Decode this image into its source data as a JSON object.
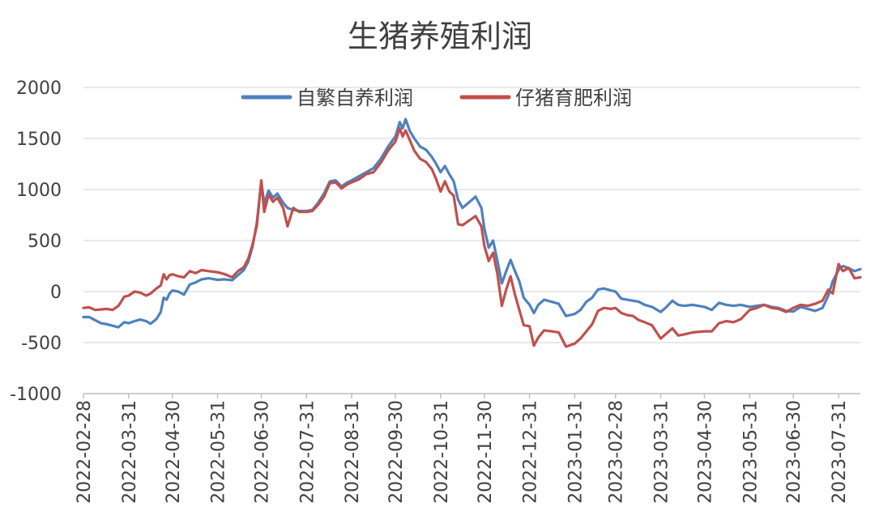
{
  "chart_data": {
    "type": "line",
    "title": "生猪养殖利润",
    "xlabel": "",
    "ylabel": "",
    "ylim": [
      -1000,
      2000
    ],
    "yticks": [
      "2000",
      "1500",
      "1000",
      "500",
      "0",
      "-500",
      "-1000"
    ],
    "ytick_values": [
      2000,
      1500,
      1000,
      500,
      0,
      -500,
      -1000
    ],
    "xlim": [
      "2022-02-28",
      "2023-08-15"
    ],
    "xticks": [
      "2022-02-28",
      "2022-03-31",
      "2022-04-30",
      "2022-05-31",
      "2022-06-30",
      "2022-07-31",
      "2022-08-31",
      "2022-09-30",
      "2022-10-31",
      "2022-11-30",
      "2022-12-31",
      "2023-01-31",
      "2023-02-28",
      "2023-03-31",
      "2023-04-30",
      "2023-05-31",
      "2023-06-30",
      "2023-07-31"
    ],
    "grid": true,
    "legend_position": "top-center",
    "series": [
      {
        "name": "自繁自养利润",
        "color": "#4f81bd",
        "points": [
          [
            "2022-02-28",
            -250
          ],
          [
            "2022-03-04",
            -250
          ],
          [
            "2022-03-08",
            -280
          ],
          [
            "2022-03-12",
            -310
          ],
          [
            "2022-03-16",
            -320
          ],
          [
            "2022-03-20",
            -335
          ],
          [
            "2022-03-24",
            -350
          ],
          [
            "2022-03-28",
            -300
          ],
          [
            "2022-03-31",
            -310
          ],
          [
            "2022-04-04",
            -290
          ],
          [
            "2022-04-08",
            -275
          ],
          [
            "2022-04-12",
            -290
          ],
          [
            "2022-04-15",
            -315
          ],
          [
            "2022-04-19",
            -270
          ],
          [
            "2022-04-22",
            -200
          ],
          [
            "2022-04-24",
            -60
          ],
          [
            "2022-04-26",
            -80
          ],
          [
            "2022-04-28",
            -20
          ],
          [
            "2022-04-30",
            10
          ],
          [
            "2022-05-04",
            0
          ],
          [
            "2022-05-08",
            -30
          ],
          [
            "2022-05-12",
            70
          ],
          [
            "2022-05-16",
            90
          ],
          [
            "2022-05-20",
            120
          ],
          [
            "2022-05-25",
            130
          ],
          [
            "2022-05-31",
            115
          ],
          [
            "2022-06-05",
            120
          ],
          [
            "2022-06-10",
            110
          ],
          [
            "2022-06-14",
            160
          ],
          [
            "2022-06-18",
            210
          ],
          [
            "2022-06-21",
            290
          ],
          [
            "2022-06-24",
            440
          ],
          [
            "2022-06-27",
            680
          ],
          [
            "2022-06-30",
            1080
          ],
          [
            "2022-07-02",
            860
          ],
          [
            "2022-07-05",
            990
          ],
          [
            "2022-07-08",
            920
          ],
          [
            "2022-07-11",
            960
          ],
          [
            "2022-07-15",
            870
          ],
          [
            "2022-07-18",
            820
          ],
          [
            "2022-07-22",
            800
          ],
          [
            "2022-07-26",
            790
          ],
          [
            "2022-07-31",
            790
          ],
          [
            "2022-08-04",
            800
          ],
          [
            "2022-08-08",
            870
          ],
          [
            "2022-08-12",
            960
          ],
          [
            "2022-08-16",
            1080
          ],
          [
            "2022-08-20",
            1090
          ],
          [
            "2022-08-24",
            1030
          ],
          [
            "2022-08-28",
            1070
          ],
          [
            "2022-08-31",
            1090
          ],
          [
            "2022-09-05",
            1130
          ],
          [
            "2022-09-10",
            1170
          ],
          [
            "2022-09-15",
            1210
          ],
          [
            "2022-09-20",
            1300
          ],
          [
            "2022-09-25",
            1420
          ],
          [
            "2022-09-30",
            1520
          ],
          [
            "2022-10-03",
            1660
          ],
          [
            "2022-10-05",
            1600
          ],
          [
            "2022-10-07",
            1690
          ],
          [
            "2022-10-10",
            1570
          ],
          [
            "2022-10-13",
            1500
          ],
          [
            "2022-10-17",
            1420
          ],
          [
            "2022-10-21",
            1390
          ],
          [
            "2022-10-25",
            1320
          ],
          [
            "2022-10-28",
            1250
          ],
          [
            "2022-10-31",
            1170
          ],
          [
            "2022-11-03",
            1230
          ],
          [
            "2022-11-06",
            1150
          ],
          [
            "2022-11-09",
            1080
          ],
          [
            "2022-11-12",
            900
          ],
          [
            "2022-11-15",
            820
          ],
          [
            "2022-11-20",
            880
          ],
          [
            "2022-11-24",
            930
          ],
          [
            "2022-11-28",
            820
          ],
          [
            "2022-11-30",
            620
          ],
          [
            "2022-12-03",
            430
          ],
          [
            "2022-12-06",
            500
          ],
          [
            "2022-12-09",
            300
          ],
          [
            "2022-12-12",
            80
          ],
          [
            "2022-12-15",
            200
          ],
          [
            "2022-12-18",
            310
          ],
          [
            "2022-12-21",
            200
          ],
          [
            "2022-12-24",
            100
          ],
          [
            "2022-12-27",
            -60
          ],
          [
            "2022-12-31",
            -130
          ],
          [
            "2023-01-03",
            -210
          ],
          [
            "2023-01-06",
            -130
          ],
          [
            "2023-01-10",
            -80
          ],
          [
            "2023-01-15",
            -100
          ],
          [
            "2023-01-20",
            -120
          ],
          [
            "2023-01-25",
            -240
          ],
          [
            "2023-01-31",
            -220
          ],
          [
            "2023-02-04",
            -180
          ],
          [
            "2023-02-08",
            -100
          ],
          [
            "2023-02-12",
            -60
          ],
          [
            "2023-02-16",
            20
          ],
          [
            "2023-02-20",
            30
          ],
          [
            "2023-02-25",
            10
          ],
          [
            "2023-02-28",
            0
          ],
          [
            "2023-03-04",
            -70
          ],
          [
            "2023-03-08",
            -80
          ],
          [
            "2023-03-12",
            -90
          ],
          [
            "2023-03-16",
            -100
          ],
          [
            "2023-03-20",
            -130
          ],
          [
            "2023-03-25",
            -150
          ],
          [
            "2023-03-31",
            -200
          ],
          [
            "2023-04-04",
            -150
          ],
          [
            "2023-04-08",
            -90
          ],
          [
            "2023-04-12",
            -130
          ],
          [
            "2023-04-16",
            -140
          ],
          [
            "2023-04-22",
            -130
          ],
          [
            "2023-04-30",
            -150
          ],
          [
            "2023-05-05",
            -180
          ],
          [
            "2023-05-10",
            -110
          ],
          [
            "2023-05-15",
            -130
          ],
          [
            "2023-05-20",
            -140
          ],
          [
            "2023-05-25",
            -130
          ],
          [
            "2023-05-31",
            -150
          ],
          [
            "2023-06-05",
            -140
          ],
          [
            "2023-06-10",
            -130
          ],
          [
            "2023-06-15",
            -150
          ],
          [
            "2023-06-20",
            -160
          ],
          [
            "2023-06-25",
            -190
          ],
          [
            "2023-06-30",
            -195
          ],
          [
            "2023-07-05",
            -150
          ],
          [
            "2023-07-10",
            -170
          ],
          [
            "2023-07-15",
            -190
          ],
          [
            "2023-07-20",
            -160
          ],
          [
            "2023-07-24",
            -40
          ],
          [
            "2023-07-27",
            100
          ],
          [
            "2023-07-31",
            210
          ],
          [
            "2023-08-03",
            250
          ],
          [
            "2023-08-07",
            230
          ],
          [
            "2023-08-11",
            200
          ],
          [
            "2023-08-15",
            220
          ]
        ]
      },
      {
        "name": "仔猪育肥利润",
        "color": "#c0504d",
        "points": [
          [
            "2022-02-28",
            -160
          ],
          [
            "2022-03-04",
            -155
          ],
          [
            "2022-03-08",
            -180
          ],
          [
            "2022-03-12",
            -175
          ],
          [
            "2022-03-16",
            -170
          ],
          [
            "2022-03-20",
            -180
          ],
          [
            "2022-03-24",
            -140
          ],
          [
            "2022-03-28",
            -50
          ],
          [
            "2022-03-31",
            -40
          ],
          [
            "2022-04-04",
            0
          ],
          [
            "2022-04-08",
            -10
          ],
          [
            "2022-04-12",
            -40
          ],
          [
            "2022-04-15",
            -20
          ],
          [
            "2022-04-19",
            30
          ],
          [
            "2022-04-22",
            60
          ],
          [
            "2022-04-24",
            170
          ],
          [
            "2022-04-26",
            120
          ],
          [
            "2022-04-28",
            160
          ],
          [
            "2022-04-30",
            170
          ],
          [
            "2022-05-04",
            150
          ],
          [
            "2022-05-08",
            140
          ],
          [
            "2022-05-12",
            200
          ],
          [
            "2022-05-16",
            180
          ],
          [
            "2022-05-20",
            210
          ],
          [
            "2022-05-25",
            200
          ],
          [
            "2022-05-31",
            190
          ],
          [
            "2022-06-05",
            170
          ],
          [
            "2022-06-10",
            140
          ],
          [
            "2022-06-14",
            200
          ],
          [
            "2022-06-18",
            240
          ],
          [
            "2022-06-21",
            320
          ],
          [
            "2022-06-24",
            460
          ],
          [
            "2022-06-27",
            650
          ],
          [
            "2022-06-30",
            1090
          ],
          [
            "2022-07-02",
            780
          ],
          [
            "2022-07-05",
            950
          ],
          [
            "2022-07-08",
            880
          ],
          [
            "2022-07-11",
            920
          ],
          [
            "2022-07-15",
            820
          ],
          [
            "2022-07-18",
            640
          ],
          [
            "2022-07-22",
            820
          ],
          [
            "2022-07-26",
            780
          ],
          [
            "2022-07-31",
            780
          ],
          [
            "2022-08-04",
            790
          ],
          [
            "2022-08-08",
            850
          ],
          [
            "2022-08-12",
            930
          ],
          [
            "2022-08-16",
            1060
          ],
          [
            "2022-08-20",
            1070
          ],
          [
            "2022-08-24",
            1010
          ],
          [
            "2022-08-28",
            1050
          ],
          [
            "2022-08-31",
            1070
          ],
          [
            "2022-09-05",
            1100
          ],
          [
            "2022-09-10",
            1150
          ],
          [
            "2022-09-15",
            1170
          ],
          [
            "2022-09-20",
            1260
          ],
          [
            "2022-09-25",
            1380
          ],
          [
            "2022-09-30",
            1470
          ],
          [
            "2022-10-03",
            1600
          ],
          [
            "2022-10-05",
            1520
          ],
          [
            "2022-10-07",
            1580
          ],
          [
            "2022-10-10",
            1480
          ],
          [
            "2022-10-13",
            1380
          ],
          [
            "2022-10-17",
            1300
          ],
          [
            "2022-10-21",
            1270
          ],
          [
            "2022-10-25",
            1200
          ],
          [
            "2022-10-28",
            1100
          ],
          [
            "2022-10-31",
            980
          ],
          [
            "2022-11-03",
            1080
          ],
          [
            "2022-11-06",
            980
          ],
          [
            "2022-11-09",
            940
          ],
          [
            "2022-11-12",
            660
          ],
          [
            "2022-11-15",
            650
          ],
          [
            "2022-11-20",
            700
          ],
          [
            "2022-11-24",
            740
          ],
          [
            "2022-11-28",
            640
          ],
          [
            "2022-11-30",
            450
          ],
          [
            "2022-12-03",
            300
          ],
          [
            "2022-12-06",
            380
          ],
          [
            "2022-12-09",
            170
          ],
          [
            "2022-12-12",
            -140
          ],
          [
            "2022-12-15",
            20
          ],
          [
            "2022-12-18",
            150
          ],
          [
            "2022-12-21",
            -30
          ],
          [
            "2022-12-24",
            -180
          ],
          [
            "2022-12-27",
            -330
          ],
          [
            "2022-12-31",
            -340
          ],
          [
            "2023-01-03",
            -530
          ],
          [
            "2023-01-06",
            -450
          ],
          [
            "2023-01-10",
            -380
          ],
          [
            "2023-01-15",
            -390
          ],
          [
            "2023-01-20",
            -400
          ],
          [
            "2023-01-25",
            -540
          ],
          [
            "2023-01-31",
            -510
          ],
          [
            "2023-02-04",
            -460
          ],
          [
            "2023-02-08",
            -390
          ],
          [
            "2023-02-12",
            -320
          ],
          [
            "2023-02-16",
            -190
          ],
          [
            "2023-02-20",
            -160
          ],
          [
            "2023-02-25",
            -170
          ],
          [
            "2023-02-28",
            -160
          ],
          [
            "2023-03-04",
            -210
          ],
          [
            "2023-03-08",
            -230
          ],
          [
            "2023-03-12",
            -240
          ],
          [
            "2023-03-16",
            -280
          ],
          [
            "2023-03-20",
            -300
          ],
          [
            "2023-03-25",
            -330
          ],
          [
            "2023-03-31",
            -460
          ],
          [
            "2023-04-04",
            -410
          ],
          [
            "2023-04-08",
            -360
          ],
          [
            "2023-04-12",
            -430
          ],
          [
            "2023-04-16",
            -420
          ],
          [
            "2023-04-22",
            -400
          ],
          [
            "2023-04-30",
            -390
          ],
          [
            "2023-05-05",
            -390
          ],
          [
            "2023-05-10",
            -310
          ],
          [
            "2023-05-15",
            -290
          ],
          [
            "2023-05-20",
            -300
          ],
          [
            "2023-05-25",
            -270
          ],
          [
            "2023-05-31",
            -180
          ],
          [
            "2023-06-05",
            -160
          ],
          [
            "2023-06-10",
            -130
          ],
          [
            "2023-06-15",
            -160
          ],
          [
            "2023-06-20",
            -170
          ],
          [
            "2023-06-25",
            -200
          ],
          [
            "2023-06-30",
            -160
          ],
          [
            "2023-07-05",
            -130
          ],
          [
            "2023-07-10",
            -140
          ],
          [
            "2023-07-15",
            -120
          ],
          [
            "2023-07-20",
            -90
          ],
          [
            "2023-07-24",
            20
          ],
          [
            "2023-07-27",
            -20
          ],
          [
            "2023-07-31",
            270
          ],
          [
            "2023-08-03",
            200
          ],
          [
            "2023-08-07",
            230
          ],
          [
            "2023-08-11",
            130
          ],
          [
            "2023-08-15",
            140
          ]
        ]
      }
    ]
  }
}
